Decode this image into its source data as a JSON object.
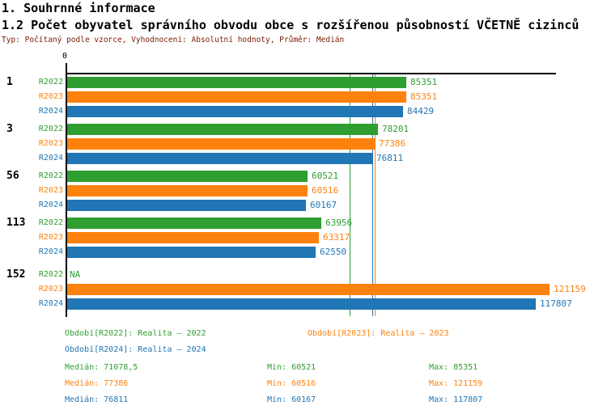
{
  "header": {
    "title1": "1. Souhrnné informace",
    "title2": "1.2 Počet obyvatel správního obvodu obce s rozšířenou působností VČETNĚ cizinců",
    "subtitle": "Typ: Počítaný podle vzorce, Vyhodnocení: Absolutní hodnoty, Průměr: Medián"
  },
  "colors": {
    "r2022_green": "#2f9e31",
    "r2023_orange": "#fd820d",
    "r2024_blue": "#2176b5",
    "axis_black": "#000000",
    "subtitle_maroon": "#7b1a00"
  },
  "chart_data": {
    "type": "bar",
    "orientation": "horizontal",
    "title": "1.2 Počet obyvatel správního obvodu obce s rozšířenou působností VČETNĚ cizinců",
    "categories": [
      "1",
      "3",
      "56",
      "113",
      "152"
    ],
    "series": [
      {
        "name": "R2022",
        "legend_label": "Realita – 2022",
        "color": "#2f9e31",
        "values": [
          85351,
          78201,
          60521,
          63956,
          null
        ],
        "value_labels": [
          "85351",
          "78201",
          "60521",
          "63956",
          "NA"
        ],
        "median": 71078.5,
        "min": 60521,
        "max": 85351
      },
      {
        "name": "R2023",
        "legend_label": "Realita – 2023",
        "color": "#fd820d",
        "values": [
          85351,
          77386,
          60516,
          63317,
          121159
        ],
        "value_labels": [
          "85351",
          "77386",
          "60516",
          "63317",
          "121159"
        ],
        "median": 77386,
        "min": 60516,
        "max": 121159
      },
      {
        "name": "R2024",
        "legend_label": "Realita – 2024",
        "color": "#2176b5",
        "values": [
          84429,
          76811,
          60167,
          62550,
          117807
        ],
        "value_labels": [
          "84429",
          "76811",
          "60167",
          "62550",
          "117807"
        ],
        "median": 76811,
        "min": 60167,
        "max": 117807
      }
    ],
    "median_lines": [
      71078.5,
      77386,
      76811
    ],
    "x_origin_label": "0",
    "xlim": [
      0,
      123000
    ],
    "grid": false,
    "legend_position": "bottom"
  },
  "legend": [
    {
      "label": "Období[R2022]: Realita – 2022"
    },
    {
      "label": "Období[R2023]: Realita – 2023"
    },
    {
      "label": "Období[R2024]: Realita – 2024"
    }
  ],
  "stats": [
    {
      "median": "Medián: 71078,5",
      "min": "Min: 60521",
      "max": "Max: 85351"
    },
    {
      "median": "Medián: 77386",
      "min": "Min: 60516",
      "max": "Max: 121159"
    },
    {
      "median": "Medián: 76811",
      "min": "Min: 60167",
      "max": "Max: 117807"
    }
  ]
}
